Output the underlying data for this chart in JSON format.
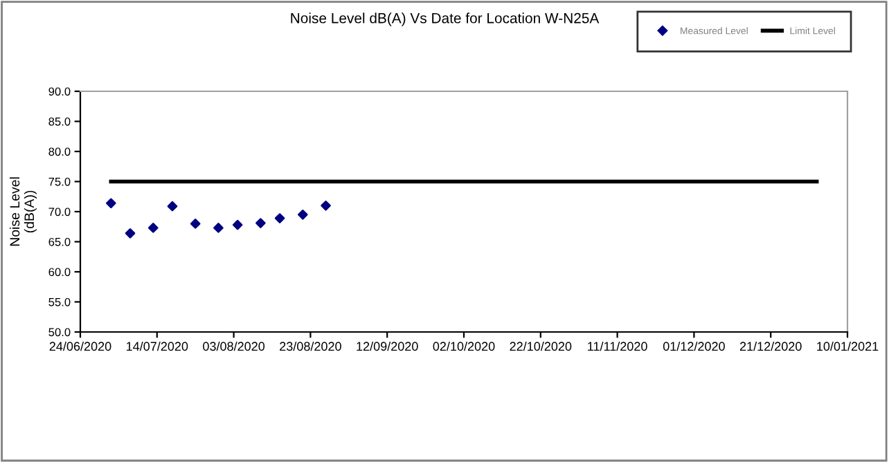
{
  "chart_data": {
    "type": "scatter",
    "title": "Noise Level dB(A) Vs Date for Location W-N25A",
    "ylabel": "Noise Level\n(dB(A))",
    "x": [
      "2020-07-02",
      "2020-07-07",
      "2020-07-13",
      "2020-07-18",
      "2020-07-24",
      "2020-07-30",
      "2020-08-04",
      "2020-08-10",
      "2020-08-15",
      "2020-08-21",
      "2020-08-27"
    ],
    "series": [
      {
        "name": "Measured Level",
        "color": "#000080",
        "marker": "diamond",
        "values": [
          71.4,
          66.4,
          67.3,
          70.9,
          68.0,
          67.3,
          67.8,
          68.1,
          68.9,
          69.5,
          71.0
        ]
      },
      {
        "name": "Limit Level",
        "type": "line",
        "color": "#000000",
        "x": [
          "2020-07-02",
          "2021-01-02"
        ],
        "values": [
          75,
          75
        ]
      }
    ],
    "xlim": [
      "2020-06-24",
      "2021-01-10"
    ],
    "xticks": [
      {
        "value": "2020-06-24",
        "label": "24/06/2020"
      },
      {
        "value": "2020-07-14",
        "label": "14/07/2020"
      },
      {
        "value": "2020-08-03",
        "label": "03/08/2020"
      },
      {
        "value": "2020-08-23",
        "label": "23/08/2020"
      },
      {
        "value": "2020-09-12",
        "label": "12/09/2020"
      },
      {
        "value": "2020-10-02",
        "label": "02/10/2020"
      },
      {
        "value": "2020-10-22",
        "label": "22/10/2020"
      },
      {
        "value": "2020-11-11",
        "label": "11/11/2020"
      },
      {
        "value": "2020-12-01",
        "label": "01/12/2020"
      },
      {
        "value": "2020-12-21",
        "label": "21/12/2020"
      },
      {
        "value": "2021-01-10",
        "label": "10/01/2021"
      }
    ],
    "ylim": [
      50,
      90
    ],
    "yticks": [
      {
        "value": 50,
        "label": "50.0"
      },
      {
        "value": 55,
        "label": "55.0"
      },
      {
        "value": 60,
        "label": "60.0"
      },
      {
        "value": 65,
        "label": "65.0"
      },
      {
        "value": 70,
        "label": "70.0"
      },
      {
        "value": 75,
        "label": "75.0"
      },
      {
        "value": 80,
        "label": "80.0"
      },
      {
        "value": 85,
        "label": "85.0"
      },
      {
        "value": 90,
        "label": "90.0"
      }
    ],
    "grid": false,
    "legend": "top right"
  }
}
